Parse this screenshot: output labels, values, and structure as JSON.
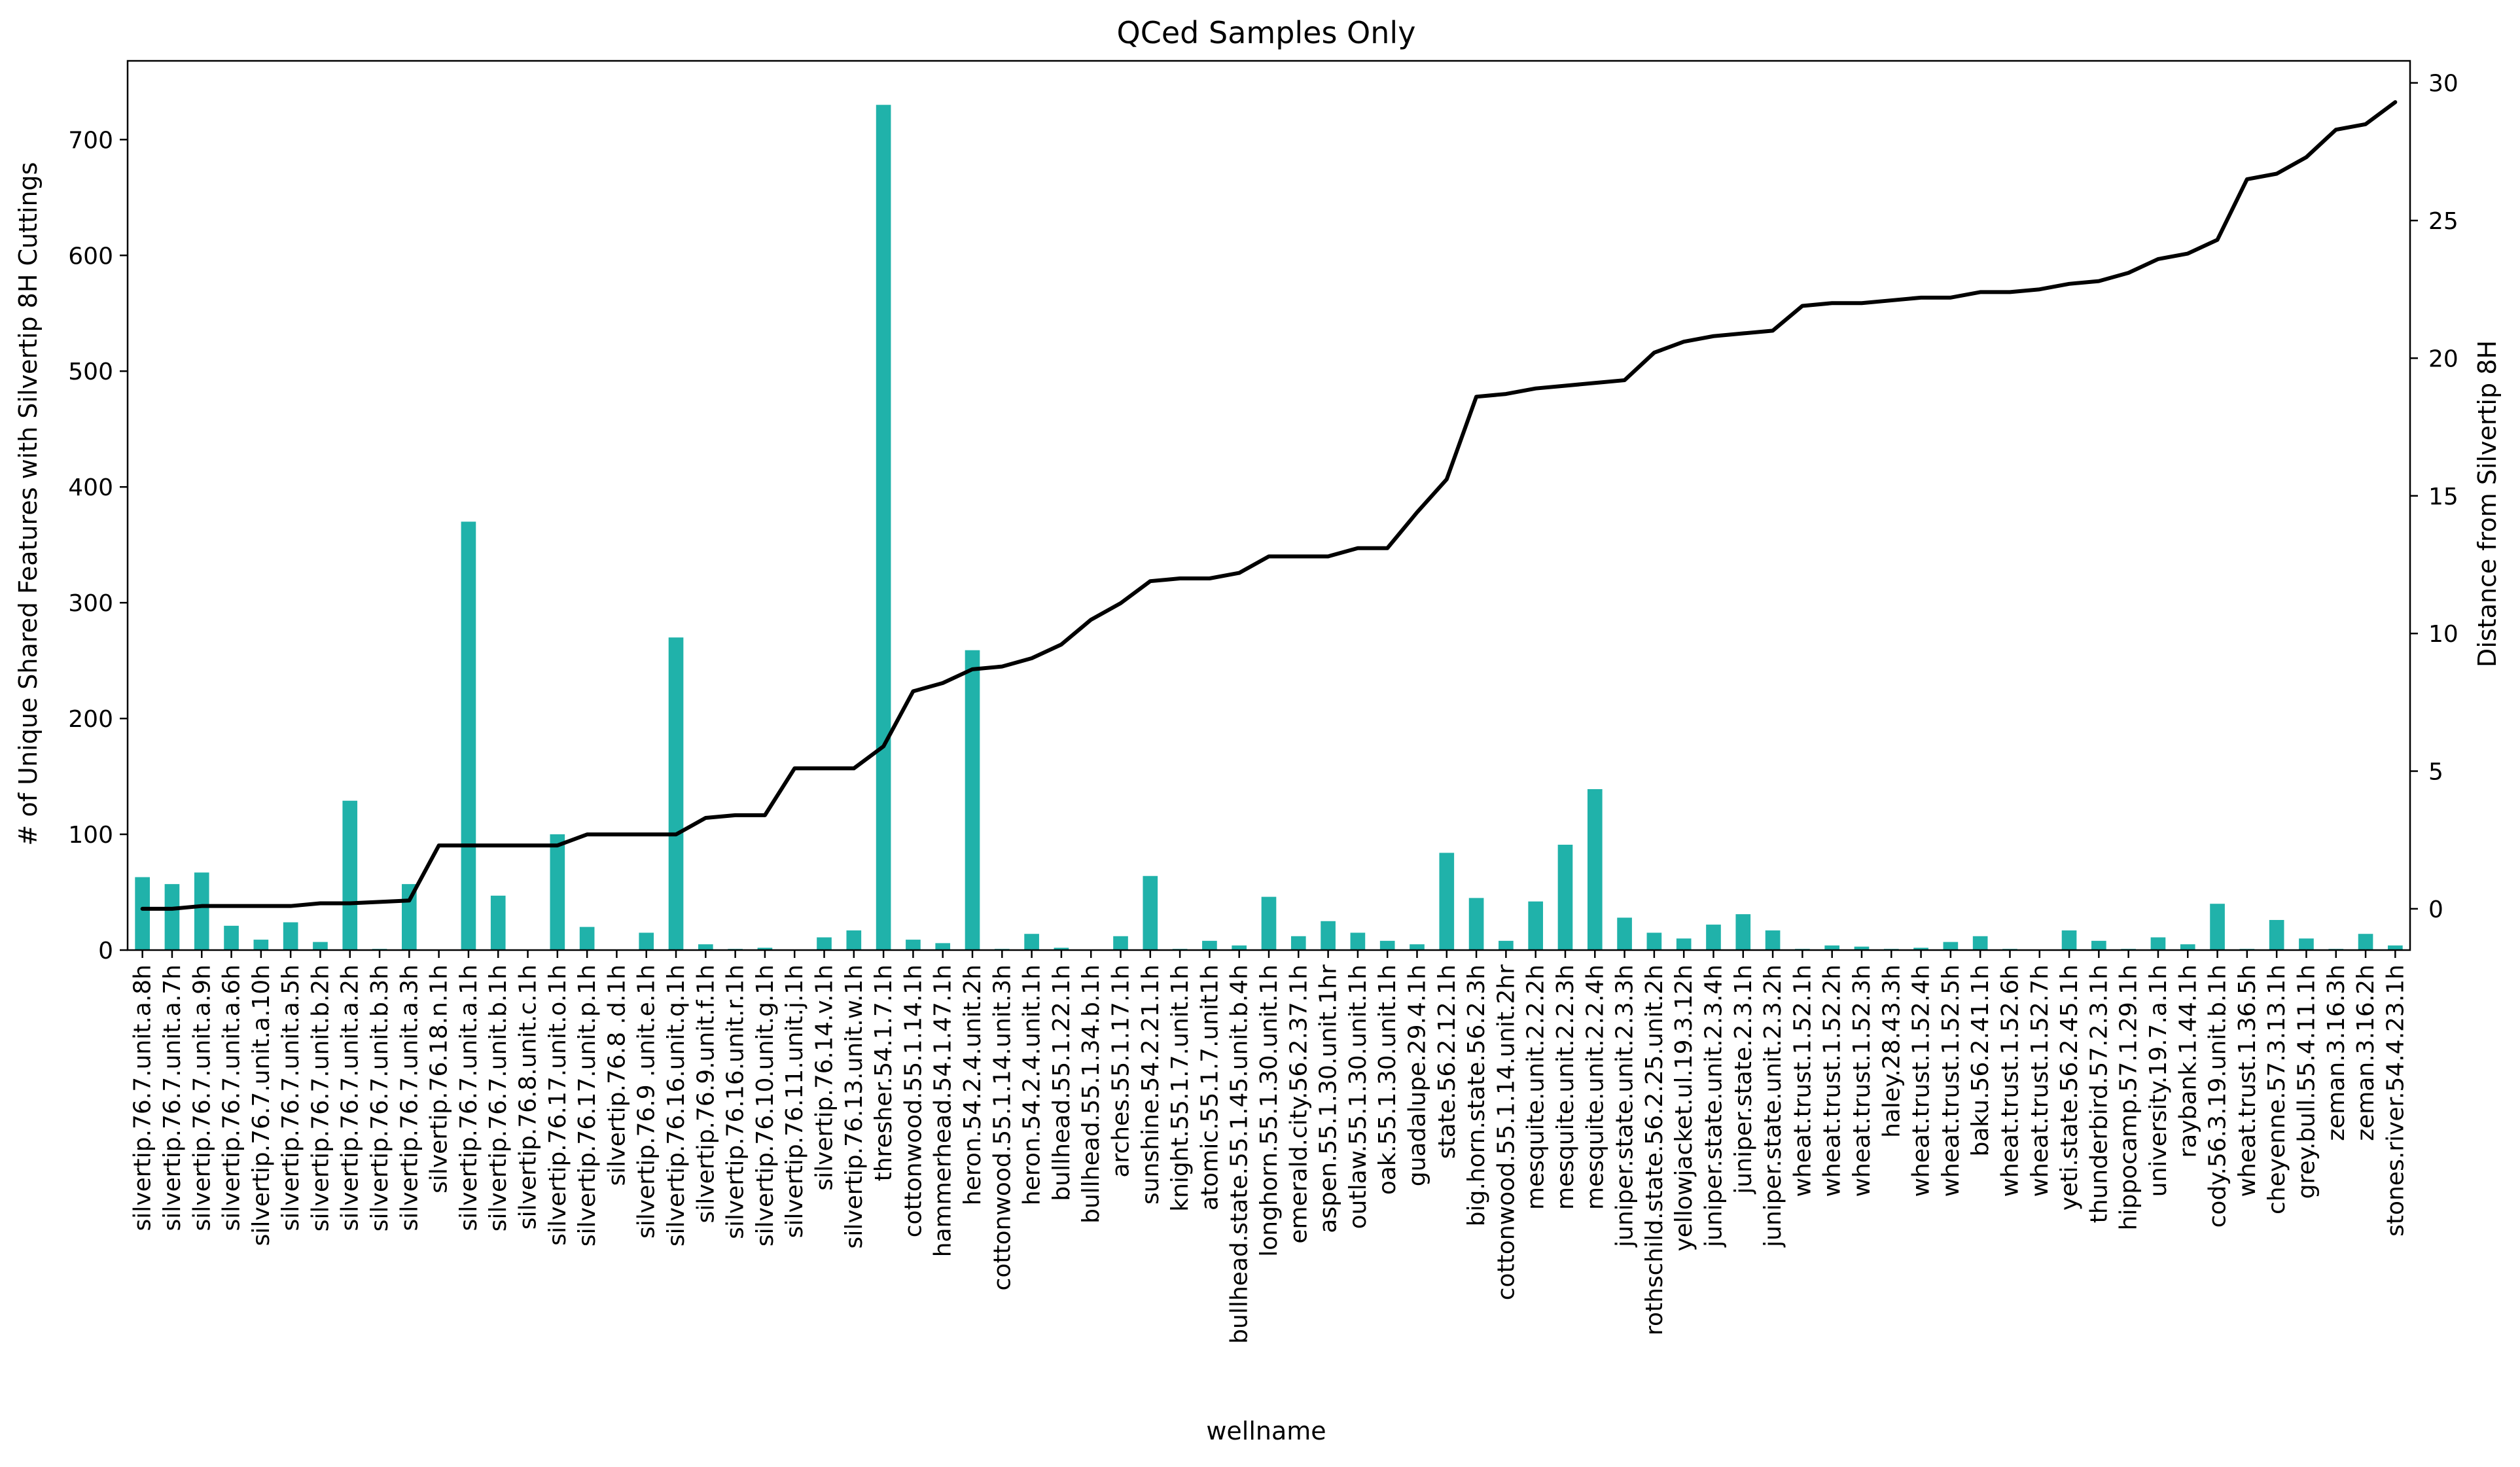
{
  "chart_data": {
    "type": "bar",
    "title": "QCed Samples Only",
    "xlabel": "wellname",
    "ylabel": "# of Unique Shared Features with Silvertip 8H Cuttings",
    "y2label": "Distance from Silvertip 8H",
    "ylim": [
      0,
      768
    ],
    "y2lim": [
      -1.5,
      30.8
    ],
    "yticks": [
      0,
      100,
      200,
      300,
      400,
      500,
      600,
      700
    ],
    "y2ticks": [
      0,
      5,
      10,
      15,
      20,
      25,
      30
    ],
    "grid": false,
    "colors": {
      "bar": "#20b2aa",
      "line": "#000000"
    },
    "categories": [
      "silvertip.76.7.unit.a.8h",
      "silvertip.76.7.unit.a.7h",
      "silvertip.76.7.unit.a.9h",
      "silvertip.76.7.unit.a.6h",
      "silvertip.76.7.unit.a.10h",
      "silvertip.76.7.unit.a.5h",
      "silvertip.76.7.unit.b.2h",
      "silvertip.76.7.unit.a.2h",
      "silvertip.76.7.unit.b.3h",
      "silvertip.76.7.unit.a.3h",
      "silvertip.76.18.n.1h",
      "silvertip.76.7.unit.a.1h",
      "silvertip.76.7.unit.b.1h",
      "silvertip.76.8.unit.c.1h",
      "silvertip.76.17.unit.o.1h",
      "silvertip.76.17.unit.p.1h",
      "silvertip.76.8 .d.1h",
      "silvertip.76.9 .unit.e.1h",
      "silvertip.76.16.unit.q.1h",
      "silvertip.76.9.unit.f.1h",
      "silvertip.76.16.unit.r.1h",
      "silvertip.76.10.unit.g.1h",
      "silvertip.76.11.unit.j.1h",
      "silvertip.76.14.v.1h",
      "silvertip.76.13.unit.w.1h",
      "thresher.54.1.7.1h",
      "cottonwood.55.1.14.1h",
      "hammerhead.54.1.47.1h",
      "heron.54.2.4.unit.2h",
      "cottonwood.55.1.14.unit.3h",
      "heron.54.2.4.unit.1h",
      "bullhead.55.1.22.1h",
      "bullhead.55.1.34.b.1h",
      "arches.55.1.17.1h",
      "sunshine.54.2.21.1h",
      "knight.55.1.7.unit.1h",
      "atomic.55.1.7.unit1h",
      "bullhead.state.55.1.45.unit.b.4h",
      "longhorn.55.1.30.unit.1h",
      "emerald.city.56.2.37.1h",
      "aspen.55.1.30.unit.1hr",
      "outlaw.55.1.30.unit.1h",
      "oak.55.1.30.unit.1h",
      "guadalupe.29.4.1h",
      "state.56.2.12.1h",
      "big.horn.state.56.2.3h",
      "cottonwood.55.1.14.unit.2hr",
      "mesquite.unit.2.2.2h",
      "mesquite.unit.2.2.3h",
      "mesquite.unit.2.2.4h",
      "juniper.state.unit.2.3.3h",
      "rothschild.state.56.2.25.unit.2h",
      "yellowjacket.ul.19.3.12h",
      "juniper.state.unit.2.3.4h",
      "juniper.state.2.3.1h",
      "juniper.state.unit.2.3.2h",
      "wheat.trust.1.52.1h",
      "wheat.trust.1.52.2h",
      "wheat.trust.1.52.3h",
      "haley.28.43.3h",
      "wheat.trust.1.52.4h",
      "wheat.trust.1.52.5h",
      "baku.56.2.41.1h",
      "wheat.trust.1.52.6h",
      "wheat.trust.1.52.7h",
      "yeti.state.56.2.45.1h",
      "thunderbird.57.2.3.1h",
      "hippocamp.57.1.29.1h",
      "university.19.7.a.1h",
      "raybank.1.44.1h",
      "cody.56.3.19.unit.b.1h",
      "wheat.trust.1.36.5h",
      "cheyenne.57.3.13.1h",
      "grey.bull.55.4.11.1h",
      "zeman.3.16.3h",
      "zeman.3.16.2h",
      "stones.river.54.4.23.1h"
    ],
    "series": [
      {
        "name": "",
        "type": "bar",
        "axis": "left",
        "values": [
          63,
          57,
          67,
          21,
          9,
          24,
          7,
          129,
          1,
          57,
          0,
          370,
          47,
          0,
          100,
          20,
          0,
          15,
          270,
          5,
          1,
          2,
          0,
          11,
          17,
          730,
          9,
          6,
          259,
          1,
          14,
          2,
          0,
          12,
          64,
          1,
          8,
          4,
          46,
          12,
          25,
          15,
          8,
          5,
          84,
          45,
          8,
          42,
          91,
          139,
          28,
          15,
          10,
          22,
          31,
          17,
          1,
          4,
          3,
          1,
          2,
          7,
          12,
          1,
          0,
          17,
          8,
          1,
          11,
          5,
          40,
          1,
          26,
          10,
          1,
          14,
          4
        ]
      },
      {
        "name": "",
        "type": "line",
        "axis": "right",
        "values": [
          0,
          0,
          0.1,
          0.1,
          0.1,
          0.1,
          0.2,
          0.2,
          0.25,
          0.3,
          2.3,
          2.3,
          2.3,
          2.3,
          2.3,
          2.7,
          2.7,
          2.7,
          2.7,
          3.3,
          3.4,
          3.4,
          5.1,
          5.1,
          5.1,
          5.9,
          7.9,
          8.2,
          8.7,
          8.8,
          9.1,
          9.6,
          10.5,
          11.1,
          11.9,
          12.0,
          12.0,
          12.2,
          12.8,
          12.8,
          12.8,
          13.1,
          13.1,
          14.4,
          15.6,
          18.6,
          18.7,
          18.9,
          19.0,
          19.1,
          19.2,
          20.2,
          20.6,
          20.8,
          20.9,
          21.0,
          21.9,
          22.0,
          22.0,
          22.1,
          22.2,
          22.2,
          22.4,
          22.4,
          22.5,
          22.7,
          22.8,
          23.1,
          23.6,
          23.8,
          24.3,
          26.5,
          26.7,
          27.3,
          28.3,
          28.5,
          29.3
        ]
      }
    ]
  }
}
